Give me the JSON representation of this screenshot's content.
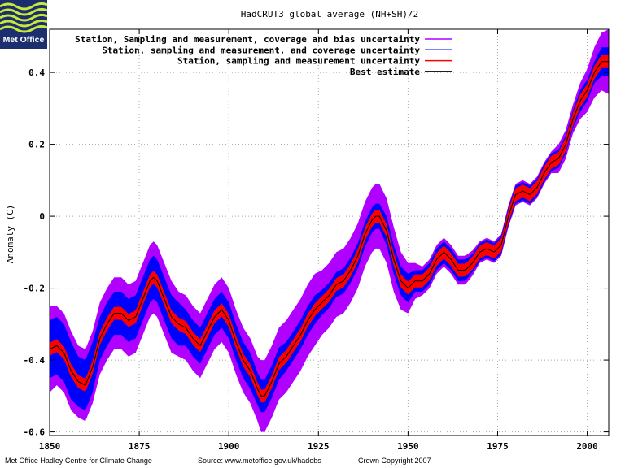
{
  "branding": {
    "logo_text": "Met Office",
    "logo_icon": "met-office-wave-logo"
  },
  "footer": {
    "left": "Met Office Hadley Centre for Climate Change",
    "center": "Source: www.metoffice.gov.uk/hadobs",
    "right": "Crown Copyright 2007"
  },
  "colors": {
    "bias_band": "#b000ff",
    "coverage_band": "#0000ff",
    "measurement_band": "#ff0000",
    "best_estimate": "#000000",
    "grid": "#a8a8a8"
  },
  "chart_data": {
    "type": "area",
    "title": "HadCRUT3 global average (NH+SH)/2",
    "xlabel": "",
    "ylabel": "Anomaly (C)",
    "xlim": [
      1850,
      2006
    ],
    "ylim": [
      -0.61,
      0.52
    ],
    "xticks": [
      1850,
      1875,
      1900,
      1925,
      1950,
      1975,
      2000
    ],
    "yticks": [
      -0.6,
      -0.4,
      -0.2,
      0,
      0.2,
      0.4
    ],
    "ytick_labels": [
      "-0.6",
      "-0.4",
      "-0.2",
      "0",
      "0.2",
      "0.4"
    ],
    "grid": true,
    "legend_position": "top-left",
    "x": [
      1850,
      1852,
      1854,
      1856,
      1858,
      1860,
      1862,
      1864,
      1866,
      1868,
      1870,
      1872,
      1874,
      1876,
      1878,
      1879,
      1880,
      1882,
      1884,
      1886,
      1888,
      1890,
      1892,
      1894,
      1896,
      1898,
      1900,
      1902,
      1904,
      1906,
      1908,
      1909,
      1910,
      1912,
      1914,
      1916,
      1918,
      1920,
      1922,
      1924,
      1926,
      1928,
      1930,
      1932,
      1934,
      1936,
      1938,
      1940,
      1941,
      1942,
      1944,
      1946,
      1948,
      1950,
      1952,
      1954,
      1956,
      1958,
      1960,
      1962,
      1964,
      1966,
      1968,
      1970,
      1972,
      1974,
      1976,
      1978,
      1980,
      1982,
      1984,
      1986,
      1988,
      1990,
      1992,
      1994,
      1996,
      1998,
      2000,
      2002,
      2004,
      2006
    ],
    "series": [
      {
        "name": "Best estimate",
        "values": [
          -0.37,
          -0.36,
          -0.38,
          -0.43,
          -0.46,
          -0.47,
          -0.42,
          -0.34,
          -0.3,
          -0.27,
          -0.27,
          -0.29,
          -0.28,
          -0.23,
          -0.18,
          -0.17,
          -0.18,
          -0.23,
          -0.28,
          -0.3,
          -0.31,
          -0.34,
          -0.36,
          -0.32,
          -0.28,
          -0.26,
          -0.29,
          -0.35,
          -0.4,
          -0.43,
          -0.48,
          -0.5,
          -0.5,
          -0.46,
          -0.41,
          -0.39,
          -0.36,
          -0.33,
          -0.29,
          -0.26,
          -0.24,
          -0.22,
          -0.19,
          -0.18,
          -0.15,
          -0.11,
          -0.05,
          -0.01,
          0.0,
          0.0,
          -0.04,
          -0.12,
          -0.18,
          -0.2,
          -0.18,
          -0.18,
          -0.16,
          -0.12,
          -0.1,
          -0.12,
          -0.15,
          -0.15,
          -0.13,
          -0.1,
          -0.09,
          -0.1,
          -0.08,
          0.0,
          0.06,
          0.07,
          0.06,
          0.08,
          0.12,
          0.15,
          0.16,
          0.2,
          0.27,
          0.32,
          0.35,
          0.4,
          0.43,
          0.43
        ]
      },
      {
        "name": "Station, sampling and measurement uncertainty",
        "half_width": 0.018
      },
      {
        "name": "Station, sampling and measurement, and coverage uncertainty",
        "half_width": [
          0.08,
          0.08,
          0.08,
          0.08,
          0.07,
          0.07,
          0.07,
          0.06,
          0.06,
          0.06,
          0.06,
          0.06,
          0.06,
          0.06,
          0.06,
          0.06,
          0.06,
          0.06,
          0.06,
          0.06,
          0.05,
          0.05,
          0.05,
          0.05,
          0.05,
          0.05,
          0.05,
          0.05,
          0.05,
          0.05,
          0.045,
          0.045,
          0.045,
          0.045,
          0.045,
          0.04,
          0.04,
          0.04,
          0.04,
          0.04,
          0.035,
          0.035,
          0.035,
          0.035,
          0.035,
          0.035,
          0.035,
          0.035,
          0.035,
          0.035,
          0.04,
          0.04,
          0.04,
          0.04,
          0.03,
          0.03,
          0.03,
          0.03,
          0.03,
          0.03,
          0.03,
          0.03,
          0.025,
          0.025,
          0.025,
          0.025,
          0.025,
          0.025,
          0.025,
          0.025,
          0.025,
          0.025,
          0.025,
          0.025,
          0.025,
          0.025,
          0.025,
          0.03,
          0.03,
          0.03,
          0.04,
          0.04
        ]
      },
      {
        "name": "Station, Sampling and measurement, coverage and bias uncertainty",
        "half_width": [
          0.12,
          0.11,
          0.11,
          0.11,
          0.1,
          0.1,
          0.1,
          0.1,
          0.1,
          0.1,
          0.1,
          0.1,
          0.1,
          0.1,
          0.1,
          0.1,
          0.1,
          0.1,
          0.1,
          0.09,
          0.09,
          0.09,
          0.09,
          0.09,
          0.09,
          0.09,
          0.09,
          0.09,
          0.09,
          0.09,
          0.09,
          0.1,
          0.1,
          0.1,
          0.1,
          0.1,
          0.1,
          0.1,
          0.1,
          0.1,
          0.09,
          0.09,
          0.09,
          0.09,
          0.09,
          0.09,
          0.09,
          0.09,
          0.09,
          0.09,
          0.09,
          0.09,
          0.08,
          0.07,
          0.05,
          0.04,
          0.04,
          0.04,
          0.04,
          0.04,
          0.04,
          0.04,
          0.035,
          0.03,
          0.03,
          0.03,
          0.03,
          0.03,
          0.03,
          0.03,
          0.03,
          0.03,
          0.03,
          0.03,
          0.04,
          0.04,
          0.04,
          0.05,
          0.06,
          0.07,
          0.08,
          0.09
        ]
      }
    ]
  }
}
